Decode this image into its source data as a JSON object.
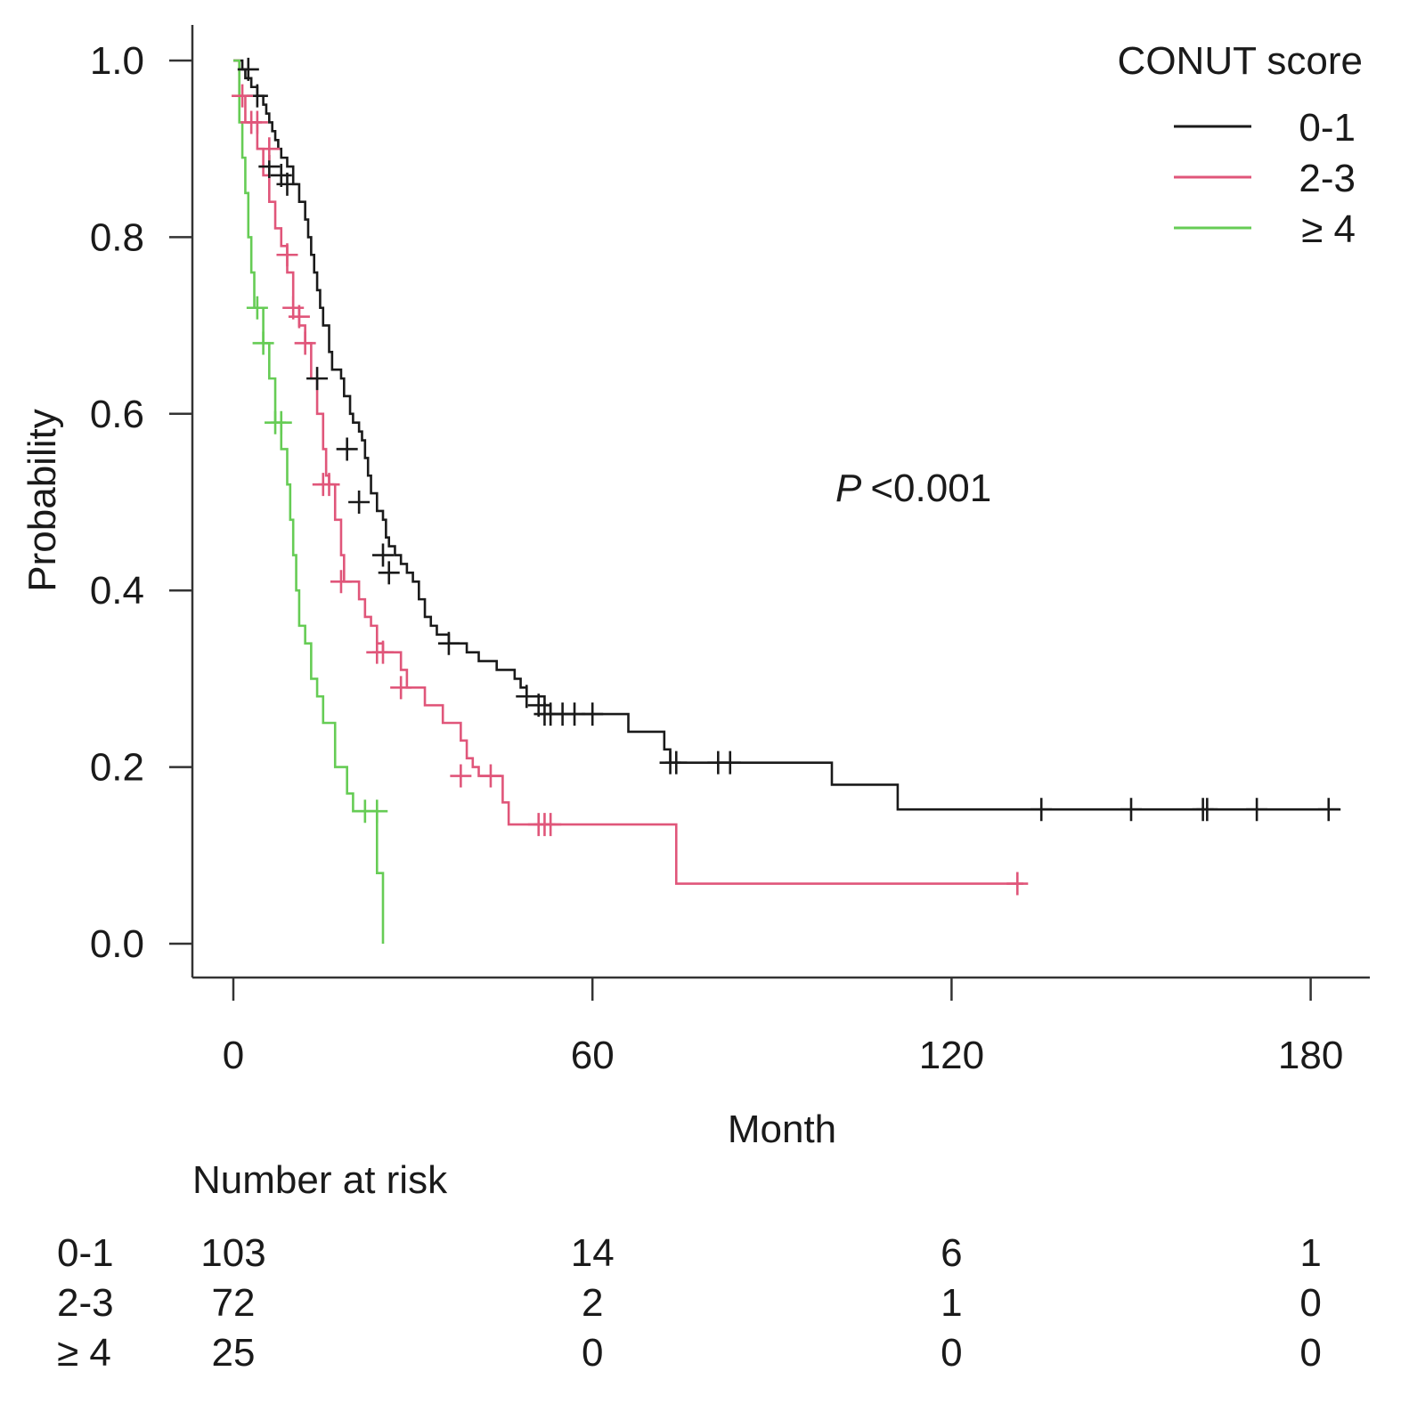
{
  "chart_data": {
    "type": "line",
    "subtype": "kaplan-meier",
    "title": "",
    "xlabel": "Month",
    "ylabel": "Probability",
    "xlim": [
      0,
      185
    ],
    "ylim": [
      0,
      1.0
    ],
    "x_ticks": [
      0,
      60,
      120,
      180
    ],
    "y_ticks": [
      "0.0",
      "0.2",
      "0.4",
      "0.6",
      "0.8",
      "1.0"
    ],
    "grid": false,
    "legend": {
      "title": "CONUT score",
      "position": "top-right"
    },
    "annotation": {
      "p_label": "P",
      "p_value": "<0.001"
    },
    "series": [
      {
        "name": "0-1",
        "color": "#1a1a1a",
        "steps": [
          [
            0,
            1.0
          ],
          [
            1.5,
            0.99
          ],
          [
            2,
            0.98
          ],
          [
            3,
            0.97
          ],
          [
            4,
            0.96
          ],
          [
            5,
            0.95
          ],
          [
            5.5,
            0.94
          ],
          [
            6,
            0.93
          ],
          [
            6.5,
            0.92
          ],
          [
            7,
            0.91
          ],
          [
            7.5,
            0.9
          ],
          [
            8,
            0.89
          ],
          [
            9,
            0.88
          ],
          [
            10,
            0.86
          ],
          [
            11,
            0.84
          ],
          [
            12,
            0.82
          ],
          [
            12.5,
            0.8
          ],
          [
            13,
            0.78
          ],
          [
            13.5,
            0.76
          ],
          [
            14,
            0.74
          ],
          [
            14.5,
            0.72
          ],
          [
            15,
            0.7
          ],
          [
            16,
            0.67
          ],
          [
            16.5,
            0.65
          ],
          [
            18,
            0.64
          ],
          [
            18.5,
            0.62
          ],
          [
            19.5,
            0.6
          ],
          [
            20,
            0.59
          ],
          [
            21,
            0.58
          ],
          [
            21.5,
            0.57
          ],
          [
            22,
            0.55
          ],
          [
            22.5,
            0.53
          ],
          [
            23,
            0.51
          ],
          [
            24,
            0.49
          ],
          [
            25,
            0.48
          ],
          [
            25.5,
            0.46
          ],
          [
            26,
            0.45
          ],
          [
            27,
            0.44
          ],
          [
            28,
            0.43
          ],
          [
            29,
            0.42
          ],
          [
            30,
            0.41
          ],
          [
            31,
            0.39
          ],
          [
            32,
            0.37
          ],
          [
            33,
            0.36
          ],
          [
            34,
            0.35
          ],
          [
            36,
            0.34
          ],
          [
            39,
            0.33
          ],
          [
            41,
            0.32
          ],
          [
            44,
            0.31
          ],
          [
            47,
            0.3
          ],
          [
            48,
            0.29
          ],
          [
            49,
            0.28
          ],
          [
            52,
            0.27
          ],
          [
            53,
            0.26
          ],
          [
            66,
            0.24
          ],
          [
            72,
            0.22
          ],
          [
            73,
            0.205
          ],
          [
            100,
            0.18
          ],
          [
            111,
            0.152
          ],
          [
            185,
            0.152
          ]
        ],
        "censor": [
          [
            2.5,
            0.99
          ],
          [
            4,
            0.96
          ],
          [
            6,
            0.88
          ],
          [
            8,
            0.87
          ],
          [
            9,
            0.86
          ],
          [
            14,
            0.64
          ],
          [
            19,
            0.56
          ],
          [
            21,
            0.5
          ],
          [
            25,
            0.44
          ],
          [
            26,
            0.42
          ],
          [
            36,
            0.34
          ],
          [
            49,
            0.28
          ],
          [
            51,
            0.27
          ],
          [
            52,
            0.26
          ],
          [
            53,
            0.26
          ],
          [
            55,
            0.26
          ],
          [
            57,
            0.26
          ],
          [
            60,
            0.26
          ],
          [
            73,
            0.205
          ],
          [
            74,
            0.205
          ],
          [
            81,
            0.205
          ],
          [
            83,
            0.205
          ],
          [
            135,
            0.152
          ],
          [
            150,
            0.152
          ],
          [
            162,
            0.152
          ],
          [
            162.7,
            0.152
          ],
          [
            171,
            0.152
          ],
          [
            183,
            0.152
          ]
        ]
      },
      {
        "name": "2-3",
        "color": "#e0567a",
        "steps": [
          [
            0,
            1.0
          ],
          [
            1,
            0.96
          ],
          [
            2,
            0.93
          ],
          [
            4,
            0.9
          ],
          [
            5,
            0.87
          ],
          [
            6,
            0.84
          ],
          [
            7,
            0.81
          ],
          [
            8,
            0.79
          ],
          [
            9,
            0.76
          ],
          [
            10,
            0.72
          ],
          [
            11,
            0.7
          ],
          [
            12,
            0.68
          ],
          [
            13,
            0.64
          ],
          [
            14,
            0.6
          ],
          [
            15,
            0.56
          ],
          [
            15.5,
            0.53
          ],
          [
            16,
            0.52
          ],
          [
            17,
            0.48
          ],
          [
            18,
            0.44
          ],
          [
            18.5,
            0.41
          ],
          [
            21,
            0.39
          ],
          [
            22,
            0.37
          ],
          [
            23,
            0.36
          ],
          [
            24,
            0.34
          ],
          [
            25,
            0.33
          ],
          [
            28,
            0.31
          ],
          [
            29,
            0.29
          ],
          [
            32,
            0.27
          ],
          [
            35,
            0.25
          ],
          [
            38,
            0.23
          ],
          [
            39,
            0.21
          ],
          [
            40,
            0.2
          ],
          [
            41,
            0.19
          ],
          [
            45,
            0.16
          ],
          [
            46,
            0.135
          ],
          [
            73,
            0.135
          ],
          [
            74,
            0.068
          ],
          [
            132,
            0.068
          ]
        ],
        "censor": [
          [
            1.5,
            0.96
          ],
          [
            3,
            0.93
          ],
          [
            4,
            0.93
          ],
          [
            6,
            0.9
          ],
          [
            9,
            0.78
          ],
          [
            10,
            0.72
          ],
          [
            11,
            0.71
          ],
          [
            12,
            0.68
          ],
          [
            15,
            0.52
          ],
          [
            16,
            0.52
          ],
          [
            18,
            0.41
          ],
          [
            24,
            0.33
          ],
          [
            25,
            0.33
          ],
          [
            28,
            0.29
          ],
          [
            38,
            0.19
          ],
          [
            43,
            0.19
          ],
          [
            51,
            0.135
          ],
          [
            52,
            0.135
          ],
          [
            53,
            0.135
          ],
          [
            131,
            0.068
          ]
        ]
      },
      {
        "name": "≥ 4",
        "color": "#66cc55",
        "steps": [
          [
            0,
            1.0
          ],
          [
            1,
            0.93
          ],
          [
            1.5,
            0.89
          ],
          [
            2,
            0.85
          ],
          [
            2.5,
            0.8
          ],
          [
            3,
            0.76
          ],
          [
            3.5,
            0.72
          ],
          [
            5,
            0.68
          ],
          [
            6,
            0.64
          ],
          [
            7,
            0.59
          ],
          [
            8,
            0.56
          ],
          [
            9,
            0.52
          ],
          [
            9.5,
            0.48
          ],
          [
            10,
            0.44
          ],
          [
            10.5,
            0.4
          ],
          [
            11,
            0.36
          ],
          [
            12,
            0.34
          ],
          [
            13,
            0.3
          ],
          [
            14,
            0.28
          ],
          [
            15,
            0.25
          ],
          [
            17,
            0.2
          ],
          [
            19,
            0.17
          ],
          [
            20,
            0.15
          ],
          [
            24,
            0.08
          ],
          [
            25,
            0.0
          ]
        ],
        "censor": [
          [
            4,
            0.72
          ],
          [
            5,
            0.68
          ],
          [
            7,
            0.59
          ],
          [
            8,
            0.59
          ],
          [
            22,
            0.15
          ],
          [
            24,
            0.15
          ]
        ]
      }
    ],
    "risk_table": {
      "title": "Number at risk",
      "times": [
        0,
        60,
        120,
        180
      ],
      "rows": [
        {
          "label": "0-1",
          "values": [
            "103",
            "14",
            "6",
            "1"
          ]
        },
        {
          "label": "2-3",
          "values": [
            "72",
            "2",
            "1",
            "0"
          ]
        },
        {
          "label": "≥ 4",
          "values": [
            "25",
            "0",
            "0",
            "0"
          ]
        }
      ]
    }
  }
}
